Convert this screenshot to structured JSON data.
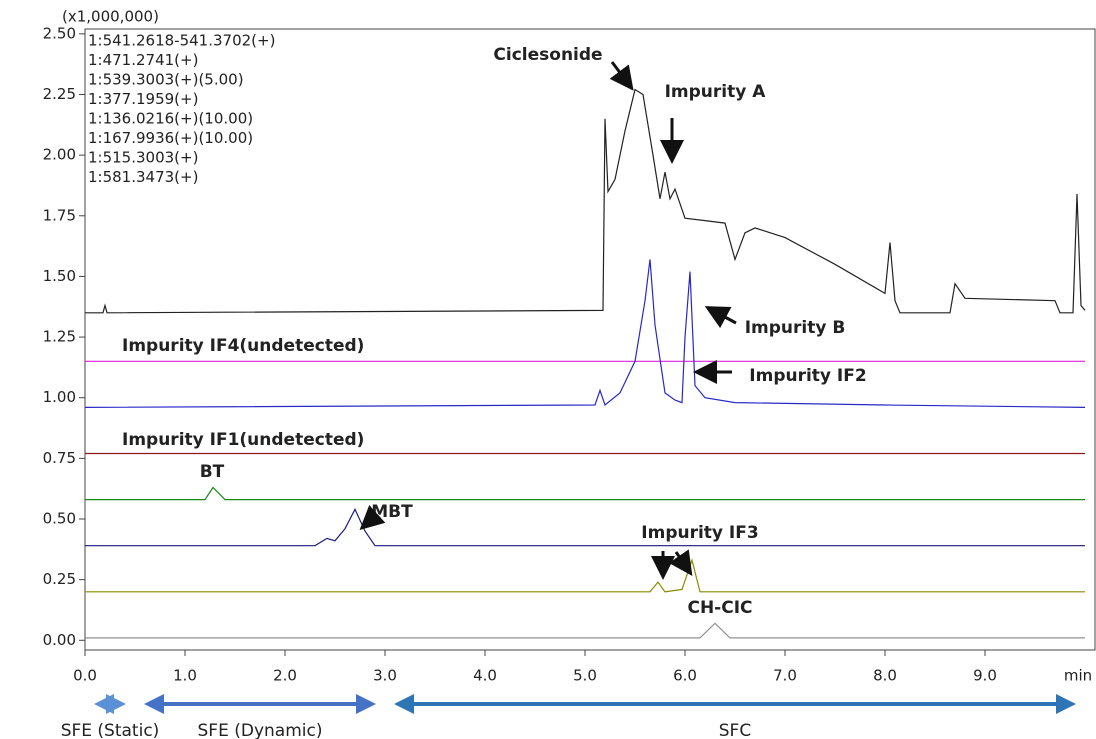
{
  "chart_data": {
    "type": "line",
    "scale_note": "(x1,000,000)",
    "x_label": "min",
    "xlim": [
      0,
      10.1
    ],
    "ylim": [
      -0.04,
      2.52
    ],
    "xticks": [
      {
        "value": 0,
        "label": "0.0"
      },
      {
        "value": 1,
        "label": "1.0"
      },
      {
        "value": 2,
        "label": "2.0"
      },
      {
        "value": 3,
        "label": "3.0"
      },
      {
        "value": 4,
        "label": "4.0"
      },
      {
        "value": 5,
        "label": "5.0"
      },
      {
        "value": 6,
        "label": "6.0"
      },
      {
        "value": 7,
        "label": "7.0"
      },
      {
        "value": 8,
        "label": "8.0"
      },
      {
        "value": 9,
        "label": "9.0"
      }
    ],
    "yticks": [
      {
        "value": 0,
        "label": "0.00"
      },
      {
        "value": 0.25,
        "label": "0.25"
      },
      {
        "value": 0.5,
        "label": "0.50"
      },
      {
        "value": 0.75,
        "label": "0.75"
      },
      {
        "value": 1,
        "label": "1.00"
      },
      {
        "value": 1.25,
        "label": "1.25"
      },
      {
        "value": 1.5,
        "label": "1.50"
      },
      {
        "value": 1.75,
        "label": "1.75"
      },
      {
        "value": 2,
        "label": "2.00"
      },
      {
        "value": 2.25,
        "label": "2.25"
      },
      {
        "value": 2.5,
        "label": "2.50"
      }
    ],
    "series": [
      {
        "name": "1:541.2618-541.3702(+)",
        "color": "#222222",
        "x": [
          0,
          0.18,
          0.2,
          0.22,
          5.18,
          5.2,
          5.23,
          5.3,
          5.4,
          5.5,
          5.58,
          5.68,
          5.75,
          5.8,
          5.85,
          5.9,
          6.0,
          6.2,
          6.4,
          6.5,
          6.6,
          6.7,
          7.0,
          7.5,
          8.0,
          8.05,
          8.1,
          8.15,
          8.65,
          8.7,
          8.8,
          9.7,
          9.75,
          9.88,
          9.92,
          9.96,
          10.0
        ],
        "values": [
          1.35,
          1.35,
          1.38,
          1.35,
          1.36,
          2.15,
          1.85,
          1.9,
          2.1,
          2.27,
          2.25,
          2.0,
          1.82,
          1.93,
          1.82,
          1.86,
          1.74,
          1.73,
          1.72,
          1.57,
          1.68,
          1.7,
          1.66,
          1.55,
          1.43,
          1.64,
          1.4,
          1.35,
          1.35,
          1.47,
          1.41,
          1.4,
          1.35,
          1.35,
          1.84,
          1.38,
          1.36
        ]
      },
      {
        "name": "1:471.2741(+)",
        "color": "#e020e0",
        "x": [
          0,
          10
        ],
        "values": [
          1.15,
          1.15
        ]
      },
      {
        "name": "1:539.3003(+)(5.00)",
        "color": "#2828c8",
        "x": [
          0,
          5.1,
          5.15,
          5.2,
          5.35,
          5.5,
          5.6,
          5.65,
          5.7,
          5.8,
          5.9,
          5.97,
          6.0,
          6.05,
          6.1,
          6.2,
          6.5,
          8.0,
          10.0
        ],
        "values": [
          0.96,
          0.97,
          1.03,
          0.97,
          1.02,
          1.15,
          1.4,
          1.57,
          1.3,
          1.02,
          0.99,
          0.98,
          1.25,
          1.52,
          1.05,
          1.0,
          0.98,
          0.97,
          0.96
        ]
      },
      {
        "name": "1:377.1959(+)",
        "color": "#8b1a1a",
        "x": [
          0,
          10
        ],
        "values": [
          0.77,
          0.77
        ]
      },
      {
        "name": "1:136.0216(+)(10.00)",
        "color": "#1a8a1a",
        "x": [
          0,
          1.2,
          1.28,
          1.4,
          10
        ],
        "values": [
          0.58,
          0.58,
          0.63,
          0.58,
          0.58
        ]
      },
      {
        "name": "1:167.9936(+)(10.00)",
        "color": "#1a1a80",
        "x": [
          0,
          2.3,
          2.42,
          2.5,
          2.6,
          2.7,
          2.8,
          2.9,
          10
        ],
        "values": [
          0.39,
          0.39,
          0.42,
          0.41,
          0.46,
          0.54,
          0.45,
          0.39,
          0.39
        ]
      },
      {
        "name": "1:515.3003(+)",
        "color": "#8a8a00",
        "x": [
          0,
          5.65,
          5.73,
          5.8,
          5.97,
          6.07,
          6.15,
          10
        ],
        "values": [
          0.2,
          0.2,
          0.24,
          0.2,
          0.21,
          0.33,
          0.2,
          0.2
        ]
      },
      {
        "name": "1:581.3473(+)",
        "color": "#909090",
        "x": [
          0,
          6.15,
          6.3,
          6.45,
          10
        ],
        "values": [
          0.01,
          0.01,
          0.07,
          0.01,
          0.01
        ]
      }
    ],
    "annotations": [
      "Ciclesonide",
      "Impurity A",
      "Impurity B",
      "Impurity IF4(undetected)",
      "Impurity IF2",
      "Impurity IF1(undetected)",
      "BT",
      "MBT",
      "Impurity IF3",
      "CH-CIC"
    ],
    "regions": [
      {
        "label": "SFE (Static)",
        "start": 0,
        "end": 0.5,
        "color": "#5b8fd6"
      },
      {
        "label": "SFE (Dynamic)",
        "start": 0.5,
        "end": 3,
        "color": "#4472c4"
      },
      {
        "label": "SFC",
        "start": 3,
        "end": 10,
        "color": "#2e75b6"
      }
    ]
  }
}
